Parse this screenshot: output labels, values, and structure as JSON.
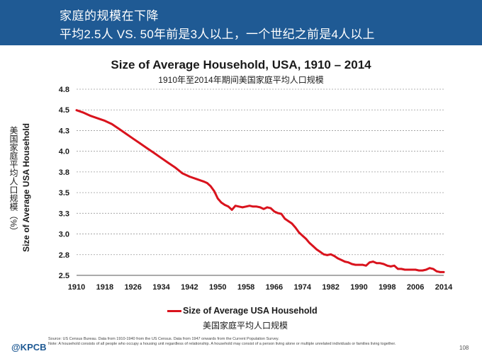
{
  "header": {
    "line1": "家庭的规模在下降",
    "line2": "平均2.5人 VS. 50年前是3人以上，一个世纪之前是4人以上"
  },
  "chart_data": {
    "type": "line",
    "title": "Size of Average Household, USA, 1910 – 2014",
    "subtitle": "1910年至2014年期间美国家庭平均人口规模",
    "ylabel": "Size of Average USA Household",
    "ylabel_cn": "美国家庭平均人口规模（%）",
    "xlabel": "",
    "xlim": [
      1910,
      2014
    ],
    "ylim": [
      2.5,
      4.8
    ],
    "xticks": [
      "1910",
      "1918",
      "1926",
      "1934",
      "1942",
      "1950",
      "1958",
      "1966",
      "1974",
      "1982",
      "1990",
      "1998",
      "2006",
      "2014"
    ],
    "yticks": [
      "4.8",
      "4.5",
      "4.3",
      "4.0",
      "3.8",
      "3.5",
      "3.3",
      "3.0",
      "2.8",
      "2.5"
    ],
    "grid": "horizontal",
    "legend_position": "bottom",
    "series": [
      {
        "name": "Size of Average USA Household",
        "name_cn": "美国家庭平均人口规模",
        "color": "#d9131d",
        "x": [
          1910,
          1912,
          1914,
          1916,
          1918,
          1920,
          1922,
          1924,
          1926,
          1928,
          1930,
          1932,
          1934,
          1936,
          1938,
          1940,
          1942,
          1944,
          1946,
          1947,
          1948,
          1949,
          1950,
          1951,
          1952,
          1953,
          1954,
          1955,
          1956,
          1957,
          1958,
          1959,
          1960,
          1961,
          1962,
          1963,
          1964,
          1965,
          1966,
          1967,
          1968,
          1969,
          1970,
          1971,
          1972,
          1973,
          1974,
          1975,
          1976,
          1977,
          1978,
          1979,
          1980,
          1981,
          1982,
          1983,
          1984,
          1985,
          1986,
          1987,
          1988,
          1989,
          1990,
          1991,
          1992,
          1993,
          1994,
          1995,
          1996,
          1997,
          1998,
          1999,
          2000,
          2001,
          2002,
          2003,
          2004,
          2005,
          2006,
          2007,
          2008,
          2009,
          2010,
          2011,
          2012,
          2013,
          2014
        ],
        "values": [
          4.54,
          4.51,
          4.47,
          4.44,
          4.41,
          4.37,
          4.31,
          4.25,
          4.19,
          4.13,
          4.07,
          4.01,
          3.95,
          3.89,
          3.83,
          3.76,
          3.72,
          3.69,
          3.66,
          3.64,
          3.6,
          3.54,
          3.45,
          3.4,
          3.37,
          3.35,
          3.31,
          3.36,
          3.35,
          3.34,
          3.35,
          3.36,
          3.35,
          3.35,
          3.34,
          3.32,
          3.34,
          3.33,
          3.29,
          3.27,
          3.26,
          3.2,
          3.17,
          3.14,
          3.09,
          3.03,
          2.99,
          2.95,
          2.9,
          2.86,
          2.82,
          2.79,
          2.76,
          2.75,
          2.76,
          2.74,
          2.71,
          2.69,
          2.67,
          2.66,
          2.64,
          2.63,
          2.63,
          2.63,
          2.62,
          2.66,
          2.67,
          2.65,
          2.65,
          2.64,
          2.62,
          2.61,
          2.62,
          2.58,
          2.58,
          2.57,
          2.57,
          2.57,
          2.57,
          2.56,
          2.56,
          2.57,
          2.59,
          2.58,
          2.55,
          2.54,
          2.54
        ]
      }
    ]
  },
  "footer": {
    "logo": "@KPCB",
    "source": "Source: US Census Bureau. Data from 1910-1940 from the US Census. Data from 1947 onwards from the Current Population Survey.",
    "note": "Note: A household consists of all people who occupy a housing unit regardless of relationship. A household may consist of a person living alone or multiple unrelated individuals or families living together.",
    "page": "108"
  }
}
